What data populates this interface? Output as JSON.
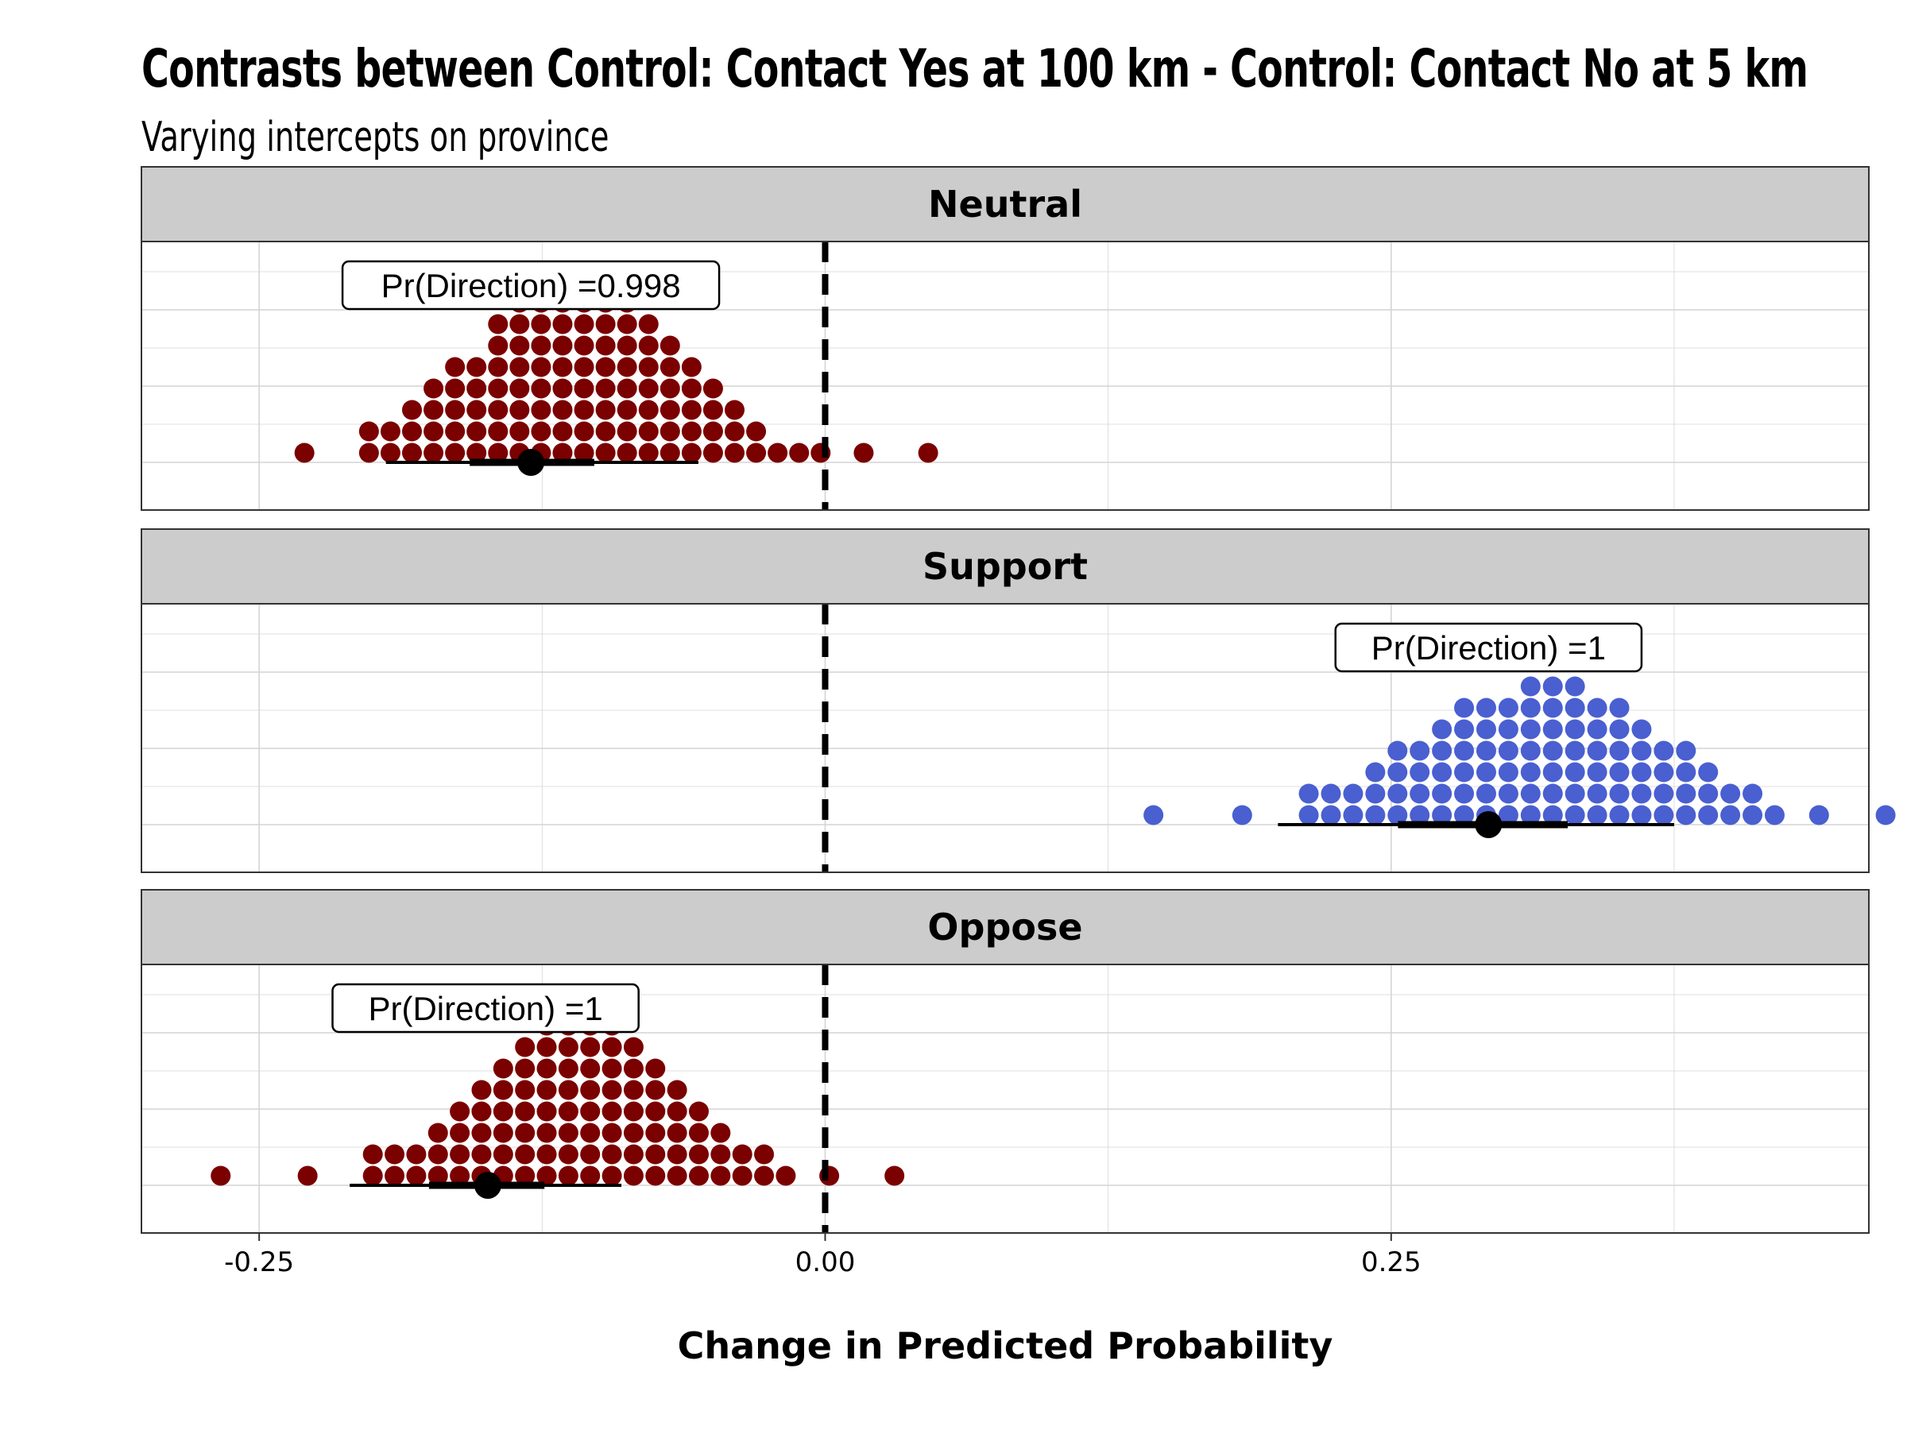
{
  "header": {
    "title": "Contrasts between Control: Contact Yes at 100 km - Control: Contact No at 5 km",
    "subtitle": "Varying intercepts on province"
  },
  "colors": {
    "negative": "#7b0000",
    "positive": "#4a5fd0",
    "strip_bg": "#cccccc",
    "grid": "#d4d4d4"
  },
  "chart_data": {
    "type": "dotplot",
    "title": "Contrasts between Control: Contact Yes at 100 km - Control: Contact No at 5 km",
    "subtitle": "Varying intercepts on province",
    "xlabel": "Change in Predicted Probability",
    "xlim": [
      -0.302,
      0.461
    ],
    "x_ticks": [
      {
        "value": -0.25,
        "label": "-0.25"
      },
      {
        "value": 0.0,
        "label": "0.00"
      },
      {
        "value": 0.25,
        "label": "0.25"
      }
    ],
    "reference_line": 0,
    "grid": true,
    "panels": [
      {
        "name": "Neutral",
        "annotation": "Pr(Direction) =0.998",
        "color": "negative",
        "annotation_x": -0.13,
        "dot_start": -0.23,
        "dot_step": 0.0095,
        "column_counts": [
          1,
          0,
          0,
          2,
          2,
          3,
          4,
          5,
          5,
          7,
          8,
          8,
          8,
          8,
          8,
          8,
          7,
          6,
          5,
          4,
          3,
          2,
          1,
          1,
          1,
          0,
          1,
          0,
          0,
          1
        ],
        "point": -0.13,
        "interval_66": [
          -0.157,
          -0.102
        ],
        "interval_95": [
          -0.194,
          -0.056
        ]
      },
      {
        "name": "Support",
        "annotation": "Pr(Direction) =1",
        "color": "positive",
        "annotation_x": 0.293,
        "dot_start": 0.145,
        "dot_step": 0.0098,
        "column_counts": [
          1,
          0,
          0,
          0,
          1,
          0,
          0,
          2,
          2,
          2,
          3,
          4,
          4,
          5,
          6,
          6,
          6,
          7,
          7,
          7,
          6,
          6,
          5,
          4,
          4,
          3,
          2,
          2,
          1,
          0,
          1,
          0,
          0,
          1
        ],
        "point": 0.293,
        "interval_66": [
          0.253,
          0.328
        ],
        "interval_95": [
          0.2,
          0.375
        ]
      },
      {
        "name": "Oppose",
        "annotation": "Pr(Direction) =1",
        "color": "negative",
        "annotation_x": -0.15,
        "dot_start": -0.267,
        "dot_step": 0.0096,
        "column_counts": [
          1,
          0,
          0,
          0,
          1,
          0,
          0,
          2,
          2,
          2,
          3,
          4,
          5,
          6,
          7,
          8,
          8,
          8,
          8,
          7,
          6,
          5,
          4,
          3,
          2,
          2,
          1,
          0,
          1,
          0,
          0,
          1
        ],
        "point": -0.149,
        "interval_66": [
          -0.175,
          -0.124
        ],
        "interval_95": [
          -0.21,
          -0.09
        ]
      }
    ]
  }
}
